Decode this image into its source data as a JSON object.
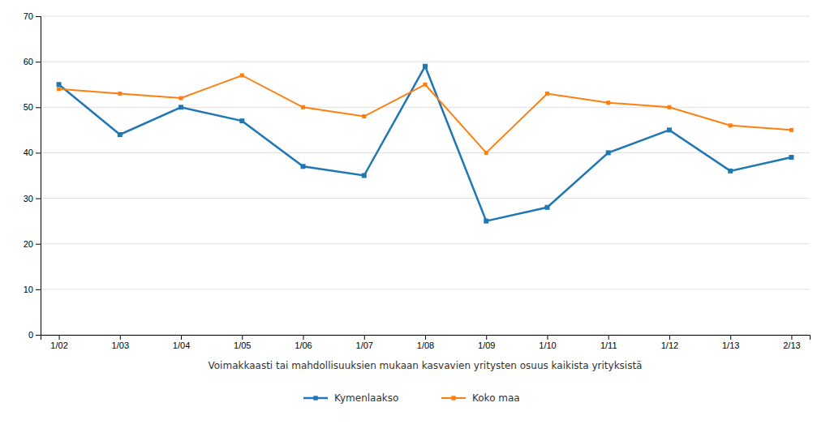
{
  "chart_data": {
    "type": "line",
    "xlabel": "Voimakkaasti tai mahdollisuuksien mukaan kasvavien yritysten osuus kaikista yrityksistä",
    "categories": [
      "1/02",
      "1/03",
      "1/04",
      "1/05",
      "1/06",
      "1/07",
      "1/08",
      "1/09",
      "1/10",
      "1/11",
      "1/12",
      "1/13",
      "2/13"
    ],
    "series": [
      {
        "name": "Kymenlaakso",
        "marker": "square",
        "values": [
          55,
          44,
          50,
          47,
          37,
          35,
          59,
          25,
          28,
          40,
          45,
          36,
          39
        ]
      },
      {
        "name": "Koko maa",
        "marker": "square",
        "values": [
          54,
          53,
          52,
          57,
          50,
          48,
          55,
          40,
          53,
          51,
          50,
          46,
          45
        ]
      }
    ],
    "ylim": [
      0,
      70
    ],
    "yticks": [
      0,
      10,
      20,
      30,
      40,
      50,
      60,
      70
    ],
    "grid": true,
    "legend": "bottom"
  }
}
